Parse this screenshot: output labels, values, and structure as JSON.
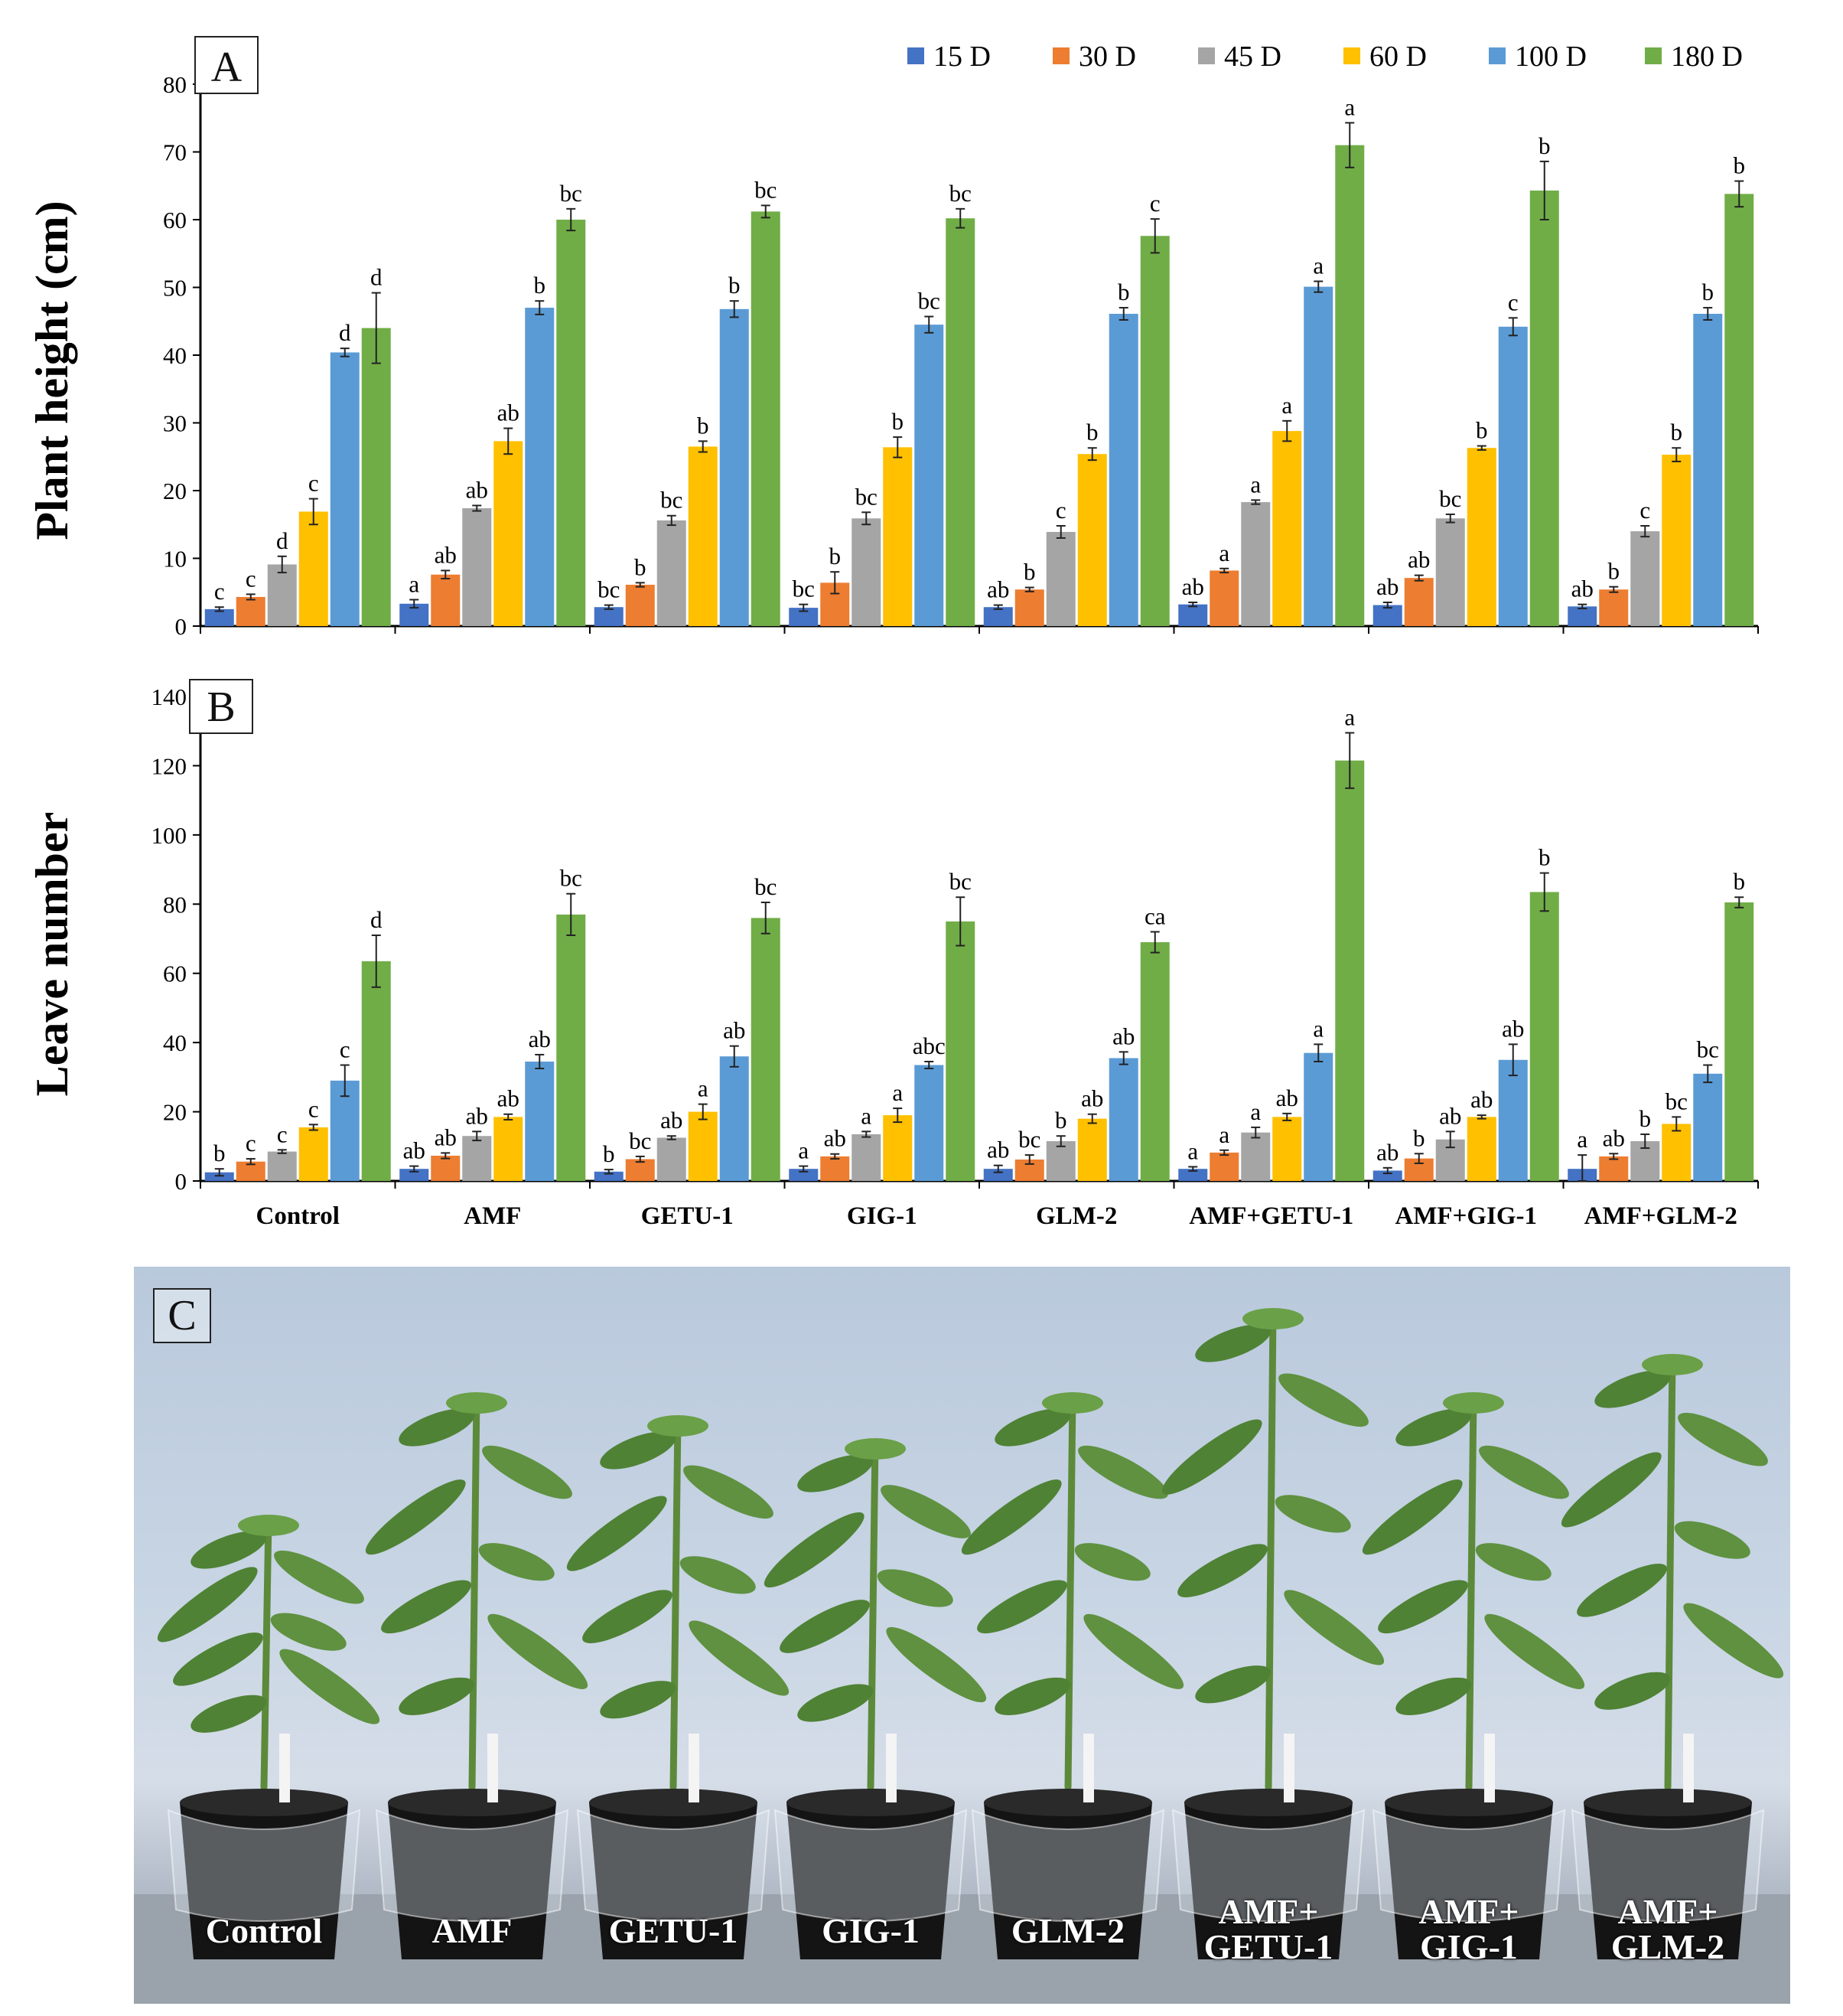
{
  "panel_labels": [
    "A",
    "B",
    "C"
  ],
  "chart_data": [
    {
      "type": "bar",
      "panel": "A",
      "ylabel": "Plant height (cm)",
      "xlabel": "",
      "ylim": [
        0,
        80
      ],
      "yticks": [
        0,
        10,
        20,
        30,
        40,
        50,
        60,
        70,
        80
      ],
      "categories": [
        "Control",
        "AMF",
        "GETU-1",
        "GIG-1",
        "GLM-2",
        "AMF+GETU-1",
        "AMF+GIG-1",
        "AMF+GLM-2"
      ],
      "legend": "top-right",
      "series": [
        {
          "name": "15 D",
          "color": "#4472C4",
          "values": [
            2.5,
            3.3,
            2.8,
            2.7,
            2.8,
            3.2,
            3.1,
            2.9
          ],
          "errors": [
            0.3,
            0.6,
            0.3,
            0.5,
            0.3,
            0.3,
            0.4,
            0.3
          ],
          "letters": [
            "c",
            "a",
            "bc",
            "bc",
            "ab",
            "ab",
            "ab",
            "ab"
          ]
        },
        {
          "name": "30 D",
          "color": "#ED7D31",
          "values": [
            4.3,
            7.6,
            6.1,
            6.4,
            5.4,
            8.2,
            7.1,
            5.4
          ],
          "errors": [
            0.4,
            0.6,
            0.3,
            1.6,
            0.3,
            0.3,
            0.4,
            0.4
          ],
          "letters": [
            "c",
            "ab",
            "b",
            "b",
            "b",
            "a",
            "ab",
            "b"
          ]
        },
        {
          "name": "45 D",
          "color": "#A5A5A5",
          "values": [
            9.1,
            17.4,
            15.6,
            15.9,
            13.9,
            18.3,
            15.9,
            14.0
          ],
          "errors": [
            1.2,
            0.4,
            0.7,
            0.9,
            0.9,
            0.3,
            0.6,
            0.8
          ],
          "letters": [
            "d",
            "ab",
            "bc",
            "bc",
            "c",
            "a",
            "bc",
            "c"
          ]
        },
        {
          "name": "60 D",
          "color": "#FFC000",
          "values": [
            16.9,
            27.3,
            26.5,
            26.4,
            25.4,
            28.8,
            26.3,
            25.3
          ],
          "errors": [
            1.9,
            1.9,
            0.8,
            1.5,
            0.9,
            1.5,
            0.3,
            1.0
          ],
          "letters": [
            "c",
            "ab",
            "b",
            "b",
            "b",
            "a",
            "b",
            "b"
          ]
        },
        {
          "name": "100 D",
          "color": "#5B9BD5",
          "values": [
            40.4,
            47.0,
            46.8,
            44.5,
            46.1,
            50.1,
            44.2,
            46.1
          ],
          "errors": [
            0.6,
            1.0,
            1.2,
            1.2,
            0.9,
            0.8,
            1.3,
            0.9
          ],
          "letters": [
            "d",
            "b",
            "b",
            "bc",
            "b",
            "a",
            "c",
            "b"
          ]
        },
        {
          "name": "180 D",
          "color": "#70AD47",
          "values": [
            44.0,
            60.0,
            61.2,
            60.2,
            57.6,
            71.0,
            64.3,
            63.8
          ],
          "errors": [
            5.2,
            1.6,
            0.9,
            1.4,
            2.5,
            3.3,
            4.3,
            1.9
          ],
          "letters": [
            "d",
            "bc",
            "bc",
            "bc",
            "c",
            "a",
            "b",
            "b"
          ]
        }
      ]
    },
    {
      "type": "bar",
      "panel": "B",
      "ylabel": "Leave number",
      "xlabel": "",
      "ylim": [
        0,
        140
      ],
      "yticks": [
        0,
        20,
        40,
        60,
        80,
        100,
        120,
        140
      ],
      "categories": [
        "Control",
        "AMF",
        "GETU-1",
        "GIG-1",
        "GLM-2",
        "AMF+GETU-1",
        "AMF+GIG-1",
        "AMF+GLM-2"
      ],
      "series": [
        {
          "name": "15 D",
          "color": "#4472C4",
          "values": [
            2.5,
            3.5,
            2.7,
            3.5,
            3.5,
            3.5,
            3.0,
            3.5
          ],
          "errors": [
            1.0,
            0.8,
            0.6,
            0.8,
            1.0,
            0.6,
            0.8,
            4.0
          ],
          "letters": [
            "b",
            "ab",
            "b",
            "a",
            "ab",
            "a",
            "ab",
            "a"
          ]
        },
        {
          "name": "30 D",
          "color": "#ED7D31",
          "values": [
            5.6,
            7.3,
            6.3,
            7.1,
            6.2,
            8.2,
            6.5,
            7.1
          ],
          "errors": [
            0.8,
            0.8,
            0.8,
            0.7,
            1.3,
            0.7,
            1.4,
            0.8
          ],
          "letters": [
            "c",
            "ab",
            "bc",
            "ab",
            "bc",
            "a",
            "b",
            "ab"
          ]
        },
        {
          "name": "45 D",
          "color": "#A5A5A5",
          "values": [
            8.5,
            13.0,
            12.5,
            13.5,
            11.5,
            14.0,
            12.0,
            11.5
          ],
          "errors": [
            0.5,
            1.3,
            0.5,
            0.8,
            1.5,
            1.5,
            2.3,
            2.0
          ],
          "letters": [
            "c",
            "ab",
            "ab",
            "a",
            "b",
            "a",
            "ab",
            "b"
          ]
        },
        {
          "name": "60 D",
          "color": "#FFC000",
          "values": [
            15.5,
            18.5,
            20.0,
            19.0,
            18.0,
            18.5,
            18.5,
            16.5
          ],
          "errors": [
            0.8,
            0.8,
            2.2,
            2.0,
            1.3,
            1.0,
            0.5,
            2.0
          ],
          "letters": [
            "c",
            "ab",
            "a",
            "a",
            "ab",
            "ab",
            "ab",
            "bc"
          ]
        },
        {
          "name": "100 D",
          "color": "#5B9BD5",
          "values": [
            29.0,
            34.5,
            36.0,
            33.5,
            35.5,
            37.0,
            35.0,
            31.0
          ],
          "errors": [
            4.5,
            2.0,
            3.0,
            1.0,
            1.8,
            2.5,
            4.5,
            2.5
          ],
          "letters": [
            "c",
            "ab",
            "ab",
            "abc",
            "ab",
            "a",
            "ab",
            "bc"
          ]
        },
        {
          "name": "180 D",
          "color": "#70AD47",
          "values": [
            63.5,
            77.0,
            76.0,
            75.0,
            69.0,
            121.5,
            83.5,
            80.5
          ],
          "errors": [
            7.5,
            6.0,
            4.5,
            7.0,
            3.0,
            8.0,
            5.5,
            1.5
          ],
          "letters": [
            "d",
            "bc",
            "bc",
            "bc",
            "ca",
            "a",
            "b",
            "b"
          ]
        }
      ]
    }
  ],
  "photo": {
    "panel": "C",
    "pot_labels": [
      [
        "Control"
      ],
      [
        "AMF"
      ],
      [
        "GETU-1"
      ],
      [
        "GIG-1"
      ],
      [
        "GLM-2"
      ],
      [
        "AMF+",
        "GETU-1"
      ],
      [
        "AMF+",
        "GIG-1"
      ],
      [
        "AMF+",
        "GLM-2"
      ]
    ]
  }
}
